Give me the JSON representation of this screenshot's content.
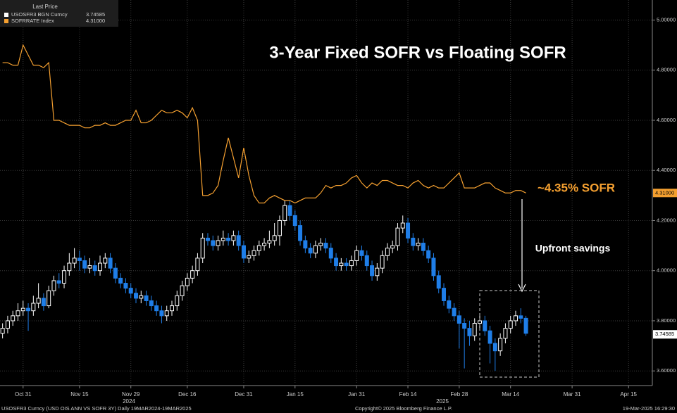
{
  "chart_data": {
    "type": "candlestick",
    "title": "3-Year Fixed SOFR vs Floating SOFR",
    "legend_title": "Last Price",
    "annotations": [
      "~4.35% SOFR",
      "Upfront savings"
    ],
    "year_labels": [
      "2024",
      "2025"
    ],
    "footer": [
      "USOSFR3 Curncy (USD OIS  ANN VS SOFR 3Y)  Daily 19MAR2024-19MAR2025",
      "Copyright© 2025 Bloomberg Finance L.P.",
      "19-Mar-2025 16:29:30"
    ],
    "xlim": [
      -0.5,
      126.5
    ],
    "xticks": [
      {
        "value": 4,
        "label": "Oct 31"
      },
      {
        "value": 15,
        "label": "Nov 15"
      },
      {
        "value": 25,
        "label": "Nov 29"
      },
      {
        "value": 36,
        "label": "Dec 16"
      },
      {
        "value": 47,
        "label": "Dec 31"
      },
      {
        "value": 57,
        "label": "Jan 15"
      },
      {
        "value": 69,
        "label": "Jan 31"
      },
      {
        "value": 79,
        "label": "Feb 14"
      },
      {
        "value": 89,
        "label": "Feb 28"
      },
      {
        "value": 99,
        "label": "Mar 14"
      },
      {
        "value": 111,
        "label": "Mar 31"
      },
      {
        "value": 122,
        "label": "Apr 15"
      }
    ],
    "ylim": [
      3.55,
      5.08
    ],
    "yticks": [
      {
        "value": 3.6,
        "label": "3.60000"
      },
      {
        "value": 3.8,
        "label": "3.80000"
      },
      {
        "value": 4.0,
        "label": "4.00000"
      },
      {
        "value": 4.2,
        "label": "4.20000"
      },
      {
        "value": 4.4,
        "label": "4.40000"
      },
      {
        "value": 4.6,
        "label": "4.60000"
      },
      {
        "value": 4.8,
        "label": "4.80000"
      },
      {
        "value": 5.0,
        "label": "5.00000"
      }
    ],
    "grid": true,
    "series": [
      {
        "name": "USOSFR3 BGN Curncy",
        "type": "candlestick",
        "color": "#ffffff",
        "down_color": "#1f7ee8",
        "last_value": 3.74585,
        "open": [
          3.75,
          3.77,
          3.8,
          3.82,
          3.84,
          3.85,
          3.84,
          3.87,
          3.89,
          3.86,
          3.92,
          3.96,
          3.95,
          4.0,
          4.03,
          4.05,
          4.04,
          4.01,
          4.02,
          4.0,
          4.03,
          4.05,
          4.01,
          3.97,
          3.95,
          3.93,
          3.91,
          3.89,
          3.9,
          3.88,
          3.86,
          3.84,
          3.82,
          3.84,
          3.86,
          3.9,
          3.94,
          3.97,
          4.0,
          4.05,
          4.13,
          4.12,
          4.1,
          4.12,
          4.13,
          4.12,
          4.14,
          4.1,
          4.05,
          4.06,
          4.08,
          4.1,
          4.11,
          4.12,
          4.14,
          4.2,
          4.26,
          4.22,
          4.18,
          4.12,
          4.09,
          4.07,
          4.1,
          4.11,
          4.09,
          4.05,
          4.02,
          4.03,
          4.02,
          4.04,
          4.08,
          4.06,
          4.02,
          3.98,
          4.01,
          4.06,
          4.09,
          4.1,
          4.17,
          4.19,
          4.13,
          4.1,
          4.11,
          4.08,
          4.05,
          3.98,
          3.93,
          3.88,
          3.85,
          3.82,
          3.79,
          3.77,
          3.74,
          3.79,
          3.8,
          3.76,
          3.71,
          3.68,
          3.73,
          3.77,
          3.8,
          3.82,
          3.81
        ],
        "high": [
          3.79,
          3.82,
          3.84,
          3.87,
          3.88,
          3.87,
          3.9,
          3.95,
          3.91,
          3.94,
          3.98,
          3.99,
          4.02,
          4.07,
          4.09,
          4.08,
          4.06,
          4.05,
          4.04,
          4.06,
          4.07,
          4.07,
          4.03,
          3.99,
          3.97,
          3.95,
          3.93,
          3.92,
          3.92,
          3.9,
          3.88,
          3.86,
          3.86,
          3.88,
          3.92,
          3.96,
          3.99,
          4.02,
          4.07,
          4.15,
          4.15,
          4.14,
          4.14,
          4.16,
          4.15,
          4.16,
          4.16,
          4.12,
          4.08,
          4.1,
          4.12,
          4.13,
          4.16,
          4.19,
          4.22,
          4.28,
          4.28,
          4.24,
          4.2,
          4.14,
          4.11,
          4.12,
          4.13,
          4.13,
          4.11,
          4.07,
          4.05,
          4.05,
          4.06,
          4.1,
          4.1,
          4.08,
          4.04,
          4.03,
          4.08,
          4.11,
          4.12,
          4.19,
          4.22,
          4.21,
          4.15,
          4.13,
          4.13,
          4.1,
          4.07,
          4.0,
          3.95,
          3.9,
          3.87,
          3.84,
          3.81,
          3.8,
          3.81,
          3.82,
          3.82,
          3.78,
          3.73,
          3.75,
          3.79,
          3.82,
          3.84,
          3.85,
          3.82
        ],
        "low": [
          3.73,
          3.75,
          3.78,
          3.8,
          3.82,
          3.76,
          3.82,
          3.85,
          3.84,
          3.85,
          3.9,
          3.93,
          3.93,
          3.98,
          4.01,
          4.0,
          3.99,
          3.99,
          3.98,
          3.98,
          4.01,
          3.99,
          3.95,
          3.93,
          3.91,
          3.89,
          3.87,
          3.87,
          3.86,
          3.84,
          3.82,
          3.79,
          3.8,
          3.82,
          3.84,
          3.88,
          3.92,
          3.95,
          3.98,
          4.03,
          4.1,
          4.08,
          4.08,
          4.1,
          4.1,
          4.1,
          4.08,
          4.03,
          4.03,
          4.04,
          4.06,
          4.08,
          4.09,
          4.1,
          4.1,
          4.18,
          4.2,
          4.16,
          4.1,
          4.07,
          4.05,
          4.05,
          4.08,
          4.07,
          4.03,
          4.0,
          4.0,
          4.0,
          4.0,
          4.02,
          4.04,
          4.0,
          3.96,
          3.96,
          3.99,
          4.04,
          4.07,
          4.08,
          4.15,
          4.11,
          4.08,
          4.08,
          4.06,
          4.03,
          3.96,
          3.91,
          3.86,
          3.83,
          3.8,
          3.69,
          3.61,
          3.7,
          3.72,
          3.77,
          3.74,
          3.63,
          3.6,
          3.66,
          3.71,
          3.75,
          3.78,
          3.79,
          3.74
        ],
        "close": [
          3.77,
          3.8,
          3.82,
          3.84,
          3.85,
          3.84,
          3.87,
          3.89,
          3.86,
          3.92,
          3.96,
          3.95,
          4.0,
          4.03,
          4.05,
          4.04,
          4.01,
          4.02,
          4.0,
          4.03,
          4.05,
          4.01,
          3.97,
          3.95,
          3.93,
          3.91,
          3.89,
          3.9,
          3.88,
          3.86,
          3.84,
          3.82,
          3.84,
          3.86,
          3.9,
          3.94,
          3.97,
          4.0,
          4.05,
          4.13,
          4.12,
          4.1,
          4.12,
          4.13,
          4.12,
          4.14,
          4.1,
          4.05,
          4.06,
          4.08,
          4.1,
          4.11,
          4.12,
          4.14,
          4.2,
          4.26,
          4.22,
          4.18,
          4.12,
          4.09,
          4.07,
          4.1,
          4.11,
          4.09,
          4.05,
          4.02,
          4.03,
          4.02,
          4.04,
          4.08,
          4.06,
          4.02,
          3.98,
          4.01,
          4.06,
          4.09,
          4.1,
          4.17,
          4.19,
          4.13,
          4.1,
          4.11,
          4.08,
          4.05,
          3.98,
          3.93,
          3.88,
          3.85,
          3.82,
          3.79,
          3.77,
          3.74,
          3.79,
          3.8,
          3.76,
          3.71,
          3.68,
          3.73,
          3.77,
          3.8,
          3.82,
          3.81,
          3.75
        ]
      },
      {
        "name": "SOFRRATE Index",
        "type": "line",
        "color": "#f5a030",
        "last_value": {
          "value": 4.31,
          "label": "4.31000"
        },
        "values": [
          4.83,
          4.83,
          4.82,
          4.82,
          4.9,
          4.86,
          4.82,
          4.82,
          4.81,
          4.83,
          4.6,
          4.6,
          4.59,
          4.58,
          4.58,
          4.58,
          4.57,
          4.57,
          4.58,
          4.58,
          4.59,
          4.58,
          4.58,
          4.59,
          4.6,
          4.6,
          4.64,
          4.59,
          4.59,
          4.6,
          4.62,
          4.64,
          4.63,
          4.63,
          4.64,
          4.63,
          4.61,
          4.65,
          4.6,
          4.3,
          4.3,
          4.31,
          4.34,
          4.44,
          4.53,
          4.45,
          4.37,
          4.49,
          4.38,
          4.3,
          4.27,
          4.27,
          4.29,
          4.3,
          4.29,
          4.28,
          4.28,
          4.27,
          4.28,
          4.29,
          4.29,
          4.29,
          4.31,
          4.34,
          4.33,
          4.34,
          4.34,
          4.35,
          4.37,
          4.38,
          4.35,
          4.33,
          4.35,
          4.34,
          4.36,
          4.36,
          4.35,
          4.34,
          4.34,
          4.33,
          4.35,
          4.36,
          4.34,
          4.33,
          4.34,
          4.33,
          4.33,
          4.35,
          4.37,
          4.39,
          4.33,
          4.33,
          4.33,
          4.34,
          4.35,
          4.35,
          4.33,
          4.32,
          4.31,
          4.31,
          4.32,
          4.32,
          4.31
        ]
      }
    ]
  }
}
